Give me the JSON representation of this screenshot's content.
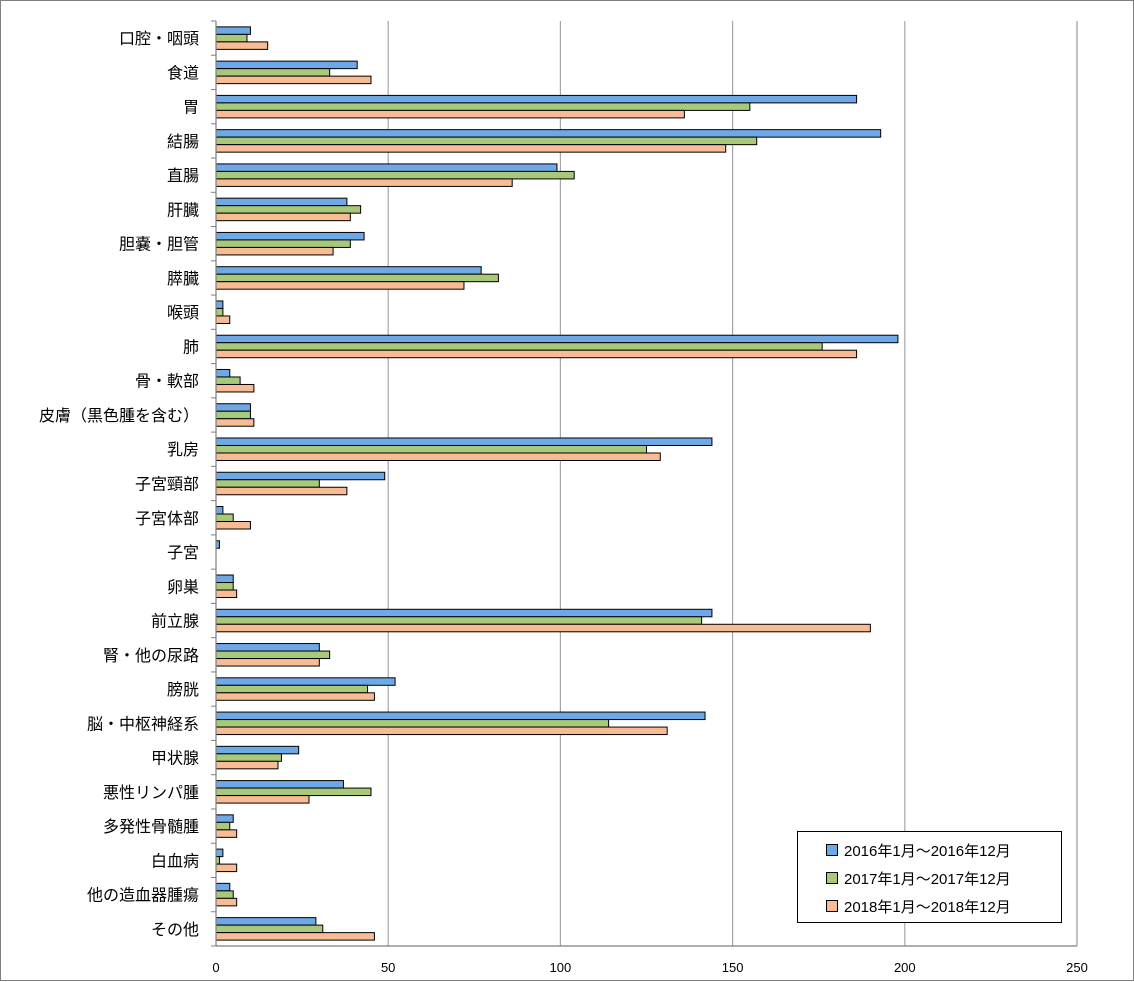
{
  "chart_data": {
    "type": "bar",
    "orientation": "horizontal",
    "title": "",
    "xlabel": "",
    "ylabel": "",
    "xlim": [
      0,
      250
    ],
    "x_ticks": [
      0,
      50,
      100,
      150,
      200,
      250
    ],
    "grid": "vertical",
    "legend_position": "bottom-right",
    "categories": [
      "口腔・咽頭",
      "食道",
      "胃",
      "結腸",
      "直腸",
      "肝臓",
      "胆嚢・胆管",
      "膵臓",
      "喉頭",
      "肺",
      "骨・軟部",
      "皮膚（黒色腫を含む）",
      "乳房",
      "子宮頸部",
      "子宮体部",
      "子宮",
      "卵巣",
      "前立腺",
      "腎・他の尿路",
      "膀胱",
      "脳・中枢神経系",
      "甲状腺",
      "悪性リンパ腫",
      "多発性骨髄腫",
      "白血病",
      "他の造血器腫瘍",
      "その他"
    ],
    "series": [
      {
        "name": "2016年1月～2016年12月",
        "color": "#6fa8e6",
        "values": [
          10,
          41,
          186,
          193,
          99,
          38,
          43,
          77,
          2,
          198,
          4,
          10,
          144,
          49,
          2,
          1,
          5,
          144,
          30,
          52,
          142,
          24,
          37,
          5,
          2,
          4,
          29
        ]
      },
      {
        "name": "2017年1月～2017年12月",
        "color": "#a9c97a",
        "values": [
          9,
          33,
          155,
          157,
          104,
          42,
          39,
          82,
          2,
          176,
          7,
          10,
          125,
          30,
          5,
          0,
          5,
          141,
          33,
          44,
          114,
          19,
          45,
          4,
          1,
          5,
          31
        ]
      },
      {
        "name": "2018年1月～2018年12月",
        "color": "#f7bc94",
        "values": [
          15,
          45,
          136,
          148,
          86,
          39,
          34,
          72,
          4,
          186,
          11,
          11,
          129,
          38,
          10,
          0,
          6,
          190,
          30,
          46,
          131,
          18,
          27,
          6,
          6,
          6,
          46
        ]
      }
    ]
  }
}
